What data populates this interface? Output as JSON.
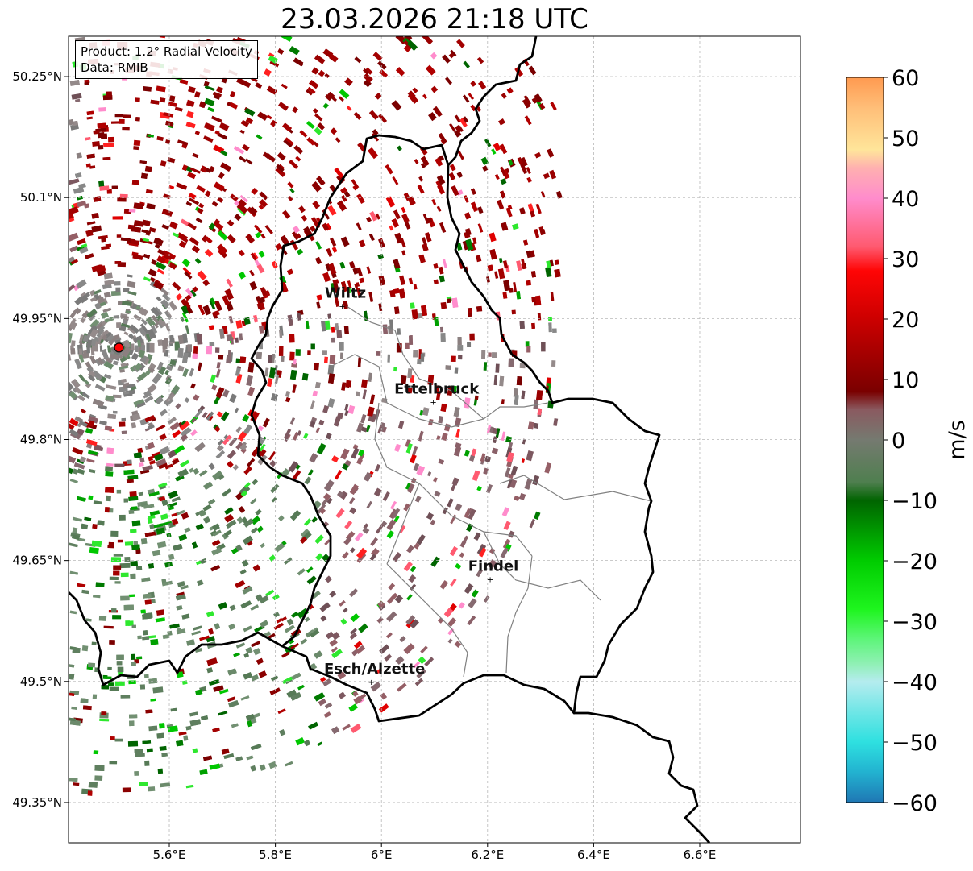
{
  "title": "23.03.2026 21:18 UTC",
  "info": {
    "product": "Product: 1.2° Radial Velocity",
    "source": "Data: RMIB"
  },
  "map": {
    "lon_range": [
      5.41,
      6.79
    ],
    "lat_range": [
      49.3,
      50.3
    ],
    "lon_ticks": [
      {
        "value": 5.6,
        "label": "5.6°E"
      },
      {
        "value": 5.8,
        "label": "5.8°E"
      },
      {
        "value": 6.0,
        "label": "6°E"
      },
      {
        "value": 6.2,
        "label": "6.2°E"
      },
      {
        "value": 6.4,
        "label": "6.4°E"
      },
      {
        "value": 6.6,
        "label": "6.6°E"
      }
    ],
    "lat_ticks": [
      {
        "value": 50.25,
        "label": "50.25°N"
      },
      {
        "value": 50.1,
        "label": "50.1°N"
      },
      {
        "value": 49.95,
        "label": "49.95°N"
      },
      {
        "value": 49.8,
        "label": "49.8°N"
      },
      {
        "value": 49.65,
        "label": "49.65°N"
      },
      {
        "value": 49.5,
        "label": "49.5°N"
      },
      {
        "value": 49.35,
        "label": "49.35°N"
      }
    ],
    "radar_site": {
      "lon": 5.505,
      "lat": 49.914
    },
    "cities": [
      {
        "name": "Wiltz",
        "lon": 5.932,
        "lat": 49.966
      },
      {
        "name": "Ettelbruck",
        "lon": 6.104,
        "lat": 49.847
      },
      {
        "name": "Findel",
        "lon": 6.211,
        "lat": 49.627
      },
      {
        "name": "Esch/Alzette",
        "lon": 5.987,
        "lat": 49.5
      }
    ],
    "boundary_color": "#000000",
    "canton_color": "#808080"
  },
  "colorbar": {
    "label": "m/s",
    "min": -60,
    "max": 60,
    "ticks": [
      {
        "value": 60,
        "label": "60"
      },
      {
        "value": 50,
        "label": "50"
      },
      {
        "value": 40,
        "label": "40"
      },
      {
        "value": 30,
        "label": "30"
      },
      {
        "value": 20,
        "label": "20"
      },
      {
        "value": 10,
        "label": "10"
      },
      {
        "value": 0,
        "label": "0"
      },
      {
        "value": -10,
        "label": "−10"
      },
      {
        "value": -20,
        "label": "−20"
      },
      {
        "value": -30,
        "label": "−30"
      },
      {
        "value": -40,
        "label": "−40"
      },
      {
        "value": -50,
        "label": "−50"
      },
      {
        "value": -60,
        "label": "−60"
      }
    ],
    "stops": [
      {
        "value": -60,
        "color": "#1f77b4"
      },
      {
        "value": -55,
        "color": "#22b2d0"
      },
      {
        "value": -50,
        "color": "#2ee0e0"
      },
      {
        "value": -45,
        "color": "#6fe6e6"
      },
      {
        "value": -40,
        "color": "#b5ecef"
      },
      {
        "value": -37,
        "color": "#8ff0b4"
      },
      {
        "value": -33,
        "color": "#5ef57a"
      },
      {
        "value": -28,
        "color": "#1ef51e"
      },
      {
        "value": -20,
        "color": "#00cc00"
      },
      {
        "value": -10,
        "color": "#006400"
      },
      {
        "value": -7,
        "color": "#4f7f4f"
      },
      {
        "value": 0,
        "color": "#757a70"
      },
      {
        "value": 5,
        "color": "#8a5a60"
      },
      {
        "value": 8,
        "color": "#7a0000"
      },
      {
        "value": 20,
        "color": "#cc0000"
      },
      {
        "value": 28,
        "color": "#ff0505"
      },
      {
        "value": 32,
        "color": "#ff5a70"
      },
      {
        "value": 40,
        "color": "#ff8ccc"
      },
      {
        "value": 45,
        "color": "#ffb0b0"
      },
      {
        "value": 48,
        "color": "#ffe59a"
      },
      {
        "value": 55,
        "color": "#ffbe78"
      },
      {
        "value": 60,
        "color": "#ff9a50"
      }
    ]
  }
}
